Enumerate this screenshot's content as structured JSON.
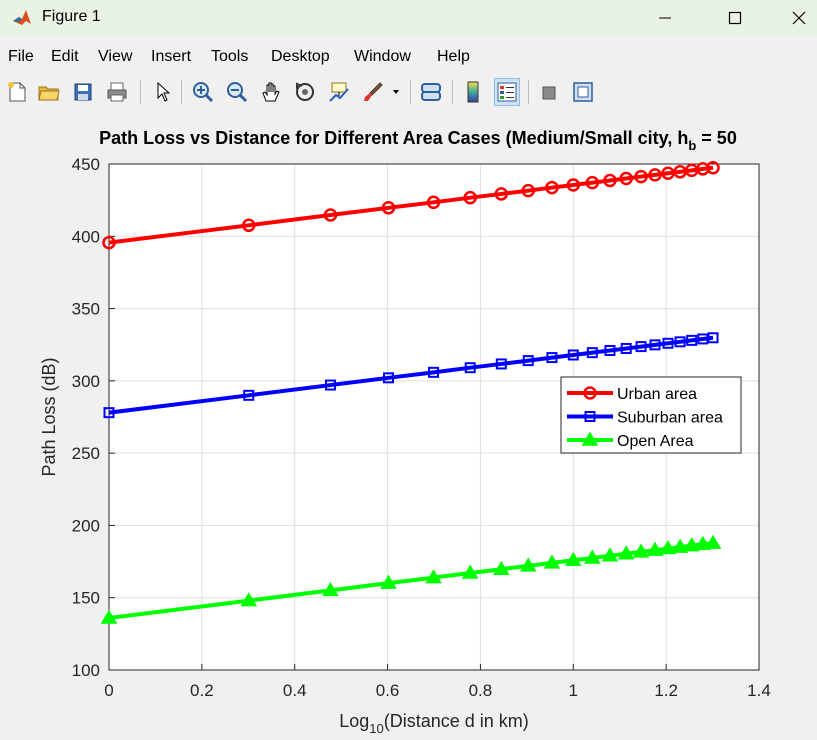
{
  "window": {
    "title": "Figure 1",
    "minimize_icon": "minimize-icon",
    "maximize_icon": "maximize-icon",
    "close_icon": "close-icon"
  },
  "menu": [
    "File",
    "Edit",
    "View",
    "Insert",
    "Tools",
    "Desktop",
    "Window",
    "Help"
  ],
  "toolbar": [
    "new-figure-icon",
    "open-file-icon",
    "save-icon",
    "print-icon",
    "select-arrow-icon",
    "zoom-in-icon",
    "zoom-out-icon",
    "pan-hand-icon",
    "rotate-3d-icon",
    "data-cursor-icon",
    "brush-icon",
    "brush-dropdown-icon",
    "link-plot-icon",
    "insert-colorbar-icon",
    "insert-legend-icon",
    "hide-plot-tools-icon",
    "show-plot-tools-icon"
  ],
  "chart_data": {
    "type": "line",
    "title_main": "Path Loss vs Distance for Different Area Cases (Medium/Small city, h",
    "title_sub": "b",
    "title_tail": " = 50",
    "xlabel_main": "Log",
    "xlabel_sub": "10",
    "xlabel_tail": "(Distance d in km)",
    "ylabel": "Path Loss (dB)",
    "xlim": [
      0,
      1.4
    ],
    "ylim": [
      100,
      450
    ],
    "xticks": [
      "0",
      "0.2",
      "0.4",
      "0.6",
      "0.8",
      "1",
      "1.2",
      "1.4"
    ],
    "yticks": [
      "100",
      "150",
      "200",
      "250",
      "300",
      "350",
      "400",
      "450"
    ],
    "grid": true,
    "legend_position": "right",
    "x": [
      0,
      0.301,
      0.477,
      0.602,
      0.699,
      0.778,
      0.845,
      0.903,
      0.954,
      1.0,
      1.041,
      1.079,
      1.114,
      1.146,
      1.176,
      1.204,
      1.23,
      1.255,
      1.279,
      1.301
    ],
    "series": [
      {
        "name": "Urban area",
        "color": "#ff0000",
        "marker": "circle",
        "values": [
          395.6,
          407.6,
          414.7,
          419.7,
          423.5,
          426.7,
          429.3,
          431.6,
          433.7,
          435.5,
          437.1,
          438.6,
          440.0,
          441.3,
          442.5,
          443.6,
          444.6,
          445.6,
          446.6,
          447.4
        ]
      },
      {
        "name": "Suburban area",
        "color": "#0000ff",
        "marker": "square",
        "values": [
          278.0,
          290.0,
          297.1,
          302.1,
          305.9,
          309.1,
          311.7,
          314.0,
          316.1,
          317.9,
          319.5,
          321.0,
          322.4,
          323.7,
          324.9,
          326.0,
          327.0,
          328.0,
          329.0,
          329.8
        ]
      },
      {
        "name": "Open Area",
        "color": "#00ff00",
        "marker": "triangle",
        "values": [
          136.0,
          148.0,
          155.1,
          160.1,
          163.9,
          167.1,
          169.7,
          172.0,
          174.1,
          175.9,
          177.5,
          179.0,
          180.4,
          181.7,
          182.9,
          184.0,
          185.0,
          186.0,
          187.0,
          187.8
        ]
      }
    ]
  }
}
